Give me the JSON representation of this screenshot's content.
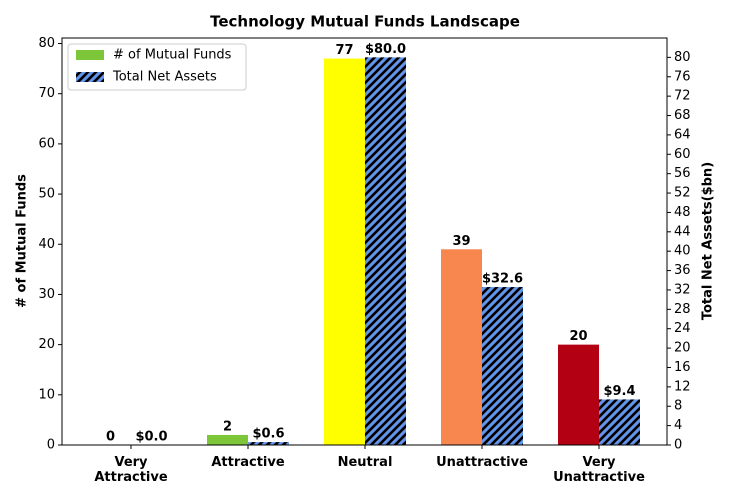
{
  "chart_data": {
    "type": "bar",
    "title": "Technology Mutual Funds Landscape",
    "categories": [
      "Very\nAttractive",
      "Attractive",
      "Neutral",
      "Unattractive",
      "Very\nUnattractive"
    ],
    "ylabel": "# of Mutual Funds",
    "y2label": "Total Net Assets($bn)",
    "series": [
      {
        "name": "# of Mutual Funds",
        "color": "#7dc63a",
        "colors": [
          "#2e8b3a",
          "#7dc63a",
          "#ffff00",
          "#f8874f",
          "#b30012"
        ],
        "values": [
          0,
          2,
          77,
          39,
          20
        ]
      },
      {
        "name": "Total Net Assets",
        "color": "#6495ed",
        "hatch": true,
        "axis": "y2",
        "values": [
          0.0,
          0.6,
          80.0,
          32.6,
          9.4
        ],
        "value_labels": [
          "$0.0",
          "$0.6",
          "$80.0",
          "$32.6",
          "$9.4"
        ]
      }
    ],
    "ylim": [
      0,
      81.1
    ],
    "yticks": [
      0,
      10,
      20,
      30,
      40,
      50,
      60,
      70,
      80
    ],
    "y2lim": [
      0,
      84
    ],
    "y2ticks": [
      0,
      4,
      8,
      12,
      16,
      20,
      24,
      28,
      32,
      36,
      40,
      44,
      48,
      52,
      56,
      60,
      64,
      68,
      72,
      76,
      80
    ],
    "legend": "upper left"
  }
}
